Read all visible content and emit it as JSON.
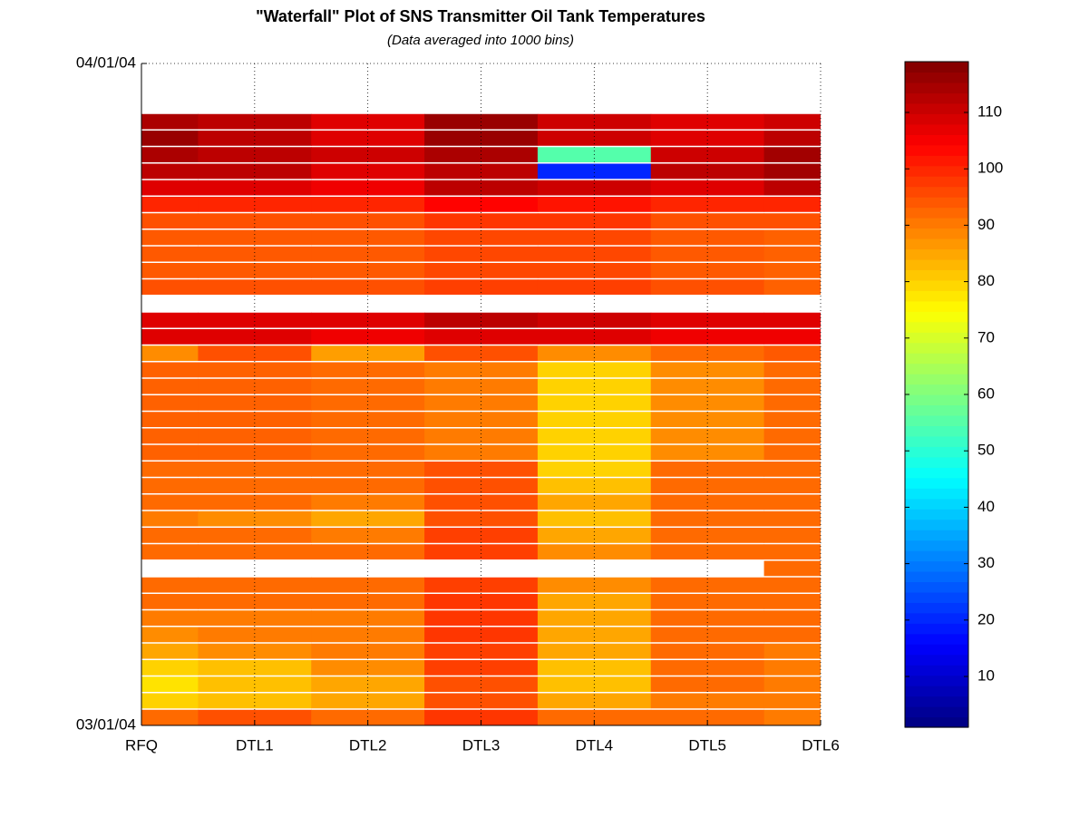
{
  "chart_data": {
    "type": "heatmap",
    "title": "\"Waterfall\" Plot of SNS Transmitter Oil Tank Temperatures",
    "subtitle": "(Data averaged into 1000 bins)",
    "categories": [
      "RFQ",
      "DTL1",
      "DTL2",
      "DTL3",
      "DTL4",
      "DTL5",
      "DTL6"
    ],
    "yticks": [
      "03/01/04",
      "04/01/04"
    ],
    "rows": [
      [
        92,
        95,
        92,
        98,
        92,
        92,
        90
      ],
      [
        80,
        82,
        85,
        95,
        85,
        90,
        90
      ],
      [
        78,
        82,
        85,
        95,
        82,
        92,
        90
      ],
      [
        80,
        82,
        88,
        97,
        82,
        92,
        90
      ],
      [
        85,
        88,
        90,
        97,
        85,
        92,
        90
      ],
      [
        88,
        90,
        90,
        98,
        85,
        92,
        92
      ],
      [
        90,
        90,
        90,
        98,
        85,
        92,
        92
      ],
      [
        92,
        92,
        92,
        98,
        85,
        92,
        92
      ],
      [
        92,
        92,
        92,
        97,
        88,
        92,
        92
      ],
      [
        null,
        null,
        null,
        null,
        null,
        null,
        92
      ],
      [
        92,
        92,
        92,
        97,
        88,
        92,
        92
      ],
      [
        92,
        92,
        90,
        97,
        85,
        92,
        92
      ],
      [
        90,
        88,
        85,
        95,
        82,
        92,
        92
      ],
      [
        92,
        92,
        90,
        95,
        85,
        92,
        92
      ],
      [
        92,
        92,
        92,
        95,
        82,
        92,
        92
      ],
      [
        92,
        92,
        92,
        95,
        80,
        92,
        92
      ],
      [
        93,
        93,
        92,
        90,
        80,
        88,
        92
      ],
      [
        93,
        93,
        92,
        90,
        80,
        88,
        92
      ],
      [
        93,
        93,
        92,
        90,
        80,
        88,
        92
      ],
      [
        93,
        93,
        92,
        90,
        80,
        88,
        92
      ],
      [
        93,
        93,
        92,
        90,
        80,
        88,
        92
      ],
      [
        93,
        93,
        92,
        90,
        80,
        88,
        92
      ],
      [
        88,
        95,
        86,
        95,
        88,
        92,
        94
      ],
      [
        108,
        108,
        106,
        108,
        108,
        106,
        106
      ],
      [
        108,
        108,
        108,
        112,
        110,
        108,
        108
      ],
      [
        null,
        null,
        null,
        null,
        null,
        null,
        null
      ],
      [
        95,
        95,
        95,
        97,
        97,
        95,
        93
      ],
      [
        94,
        94,
        94,
        96,
        96,
        94,
        93
      ],
      [
        94,
        94,
        94,
        96,
        96,
        94,
        93
      ],
      [
        94,
        94,
        94,
        96,
        96,
        94,
        93
      ],
      [
        95,
        95,
        95,
        98,
        98,
        95,
        95
      ],
      [
        100,
        100,
        100,
        104,
        102,
        100,
        100
      ],
      [
        108,
        108,
        106,
        112,
        110,
        108,
        112
      ],
      [
        112,
        112,
        108,
        112,
        20,
        112,
        115
      ],
      [
        114,
        112,
        110,
        114,
        55,
        110,
        115
      ],
      [
        116,
        112,
        108,
        116,
        110,
        108,
        112
      ],
      [
        114,
        112,
        108,
        116,
        110,
        108,
        110
      ],
      [
        null,
        null,
        null,
        null,
        null,
        null,
        null
      ],
      [
        null,
        null,
        null,
        null,
        null,
        null,
        null
      ],
      [
        null,
        null,
        null,
        null,
        null,
        null,
        null
      ]
    ],
    "clim": [
      1,
      119
    ],
    "cticks": [
      10,
      20,
      30,
      40,
      50,
      60,
      70,
      80,
      90,
      100,
      110
    ],
    "colormap": "jet"
  }
}
